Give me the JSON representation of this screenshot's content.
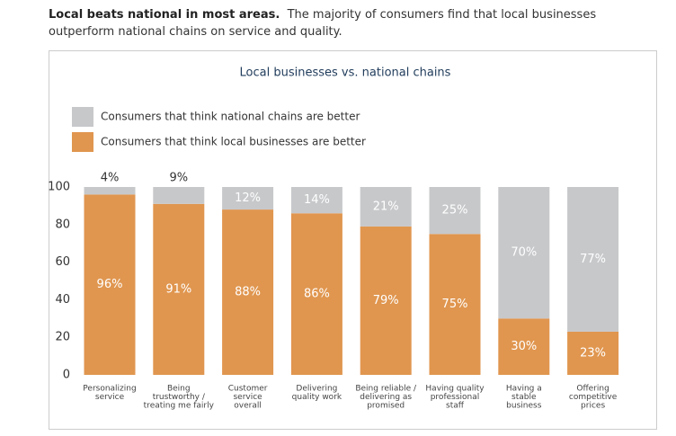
{
  "header": {
    "lead": "Local beats national in most areas.",
    "text": "The majority of consumers find that local businesses outperform national chains on service and quality."
  },
  "chart_data": {
    "type": "stacked-bar",
    "title": "Local businesses vs. national chains",
    "categories": [
      [
        "Personalizing",
        "service"
      ],
      [
        "Being",
        "trustworthy /",
        "treating me fairly"
      ],
      [
        "Customer",
        "service",
        "overall"
      ],
      [
        "Delivering",
        "quality work"
      ],
      [
        "Being reliable /",
        "delivering as",
        "promised"
      ],
      [
        "Having quality",
        "professional",
        "staff"
      ],
      [
        "Having a",
        "stable",
        "business"
      ],
      [
        "Offering",
        "competitive",
        "prices"
      ]
    ],
    "series": [
      {
        "name": "Consumers that think local businesses are better",
        "color": "#e0964f",
        "values": [
          96,
          91,
          88,
          86,
          79,
          75,
          30,
          23
        ],
        "value_labels": [
          "96%",
          "91%",
          "88%",
          "86%",
          "79%",
          "75%",
          "30%",
          "23%"
        ]
      },
      {
        "name": "Consumers that think national chains are better",
        "color": "#c7c8ca",
        "values": [
          4,
          9,
          12,
          14,
          21,
          25,
          70,
          77
        ],
        "value_labels": [
          "4%",
          "9%",
          "12%",
          "14%",
          "21%",
          "25%",
          "70%",
          "77%"
        ]
      }
    ],
    "ylim": [
      0,
      100
    ],
    "yticks": [
      0,
      20,
      40,
      60,
      80,
      100
    ]
  }
}
